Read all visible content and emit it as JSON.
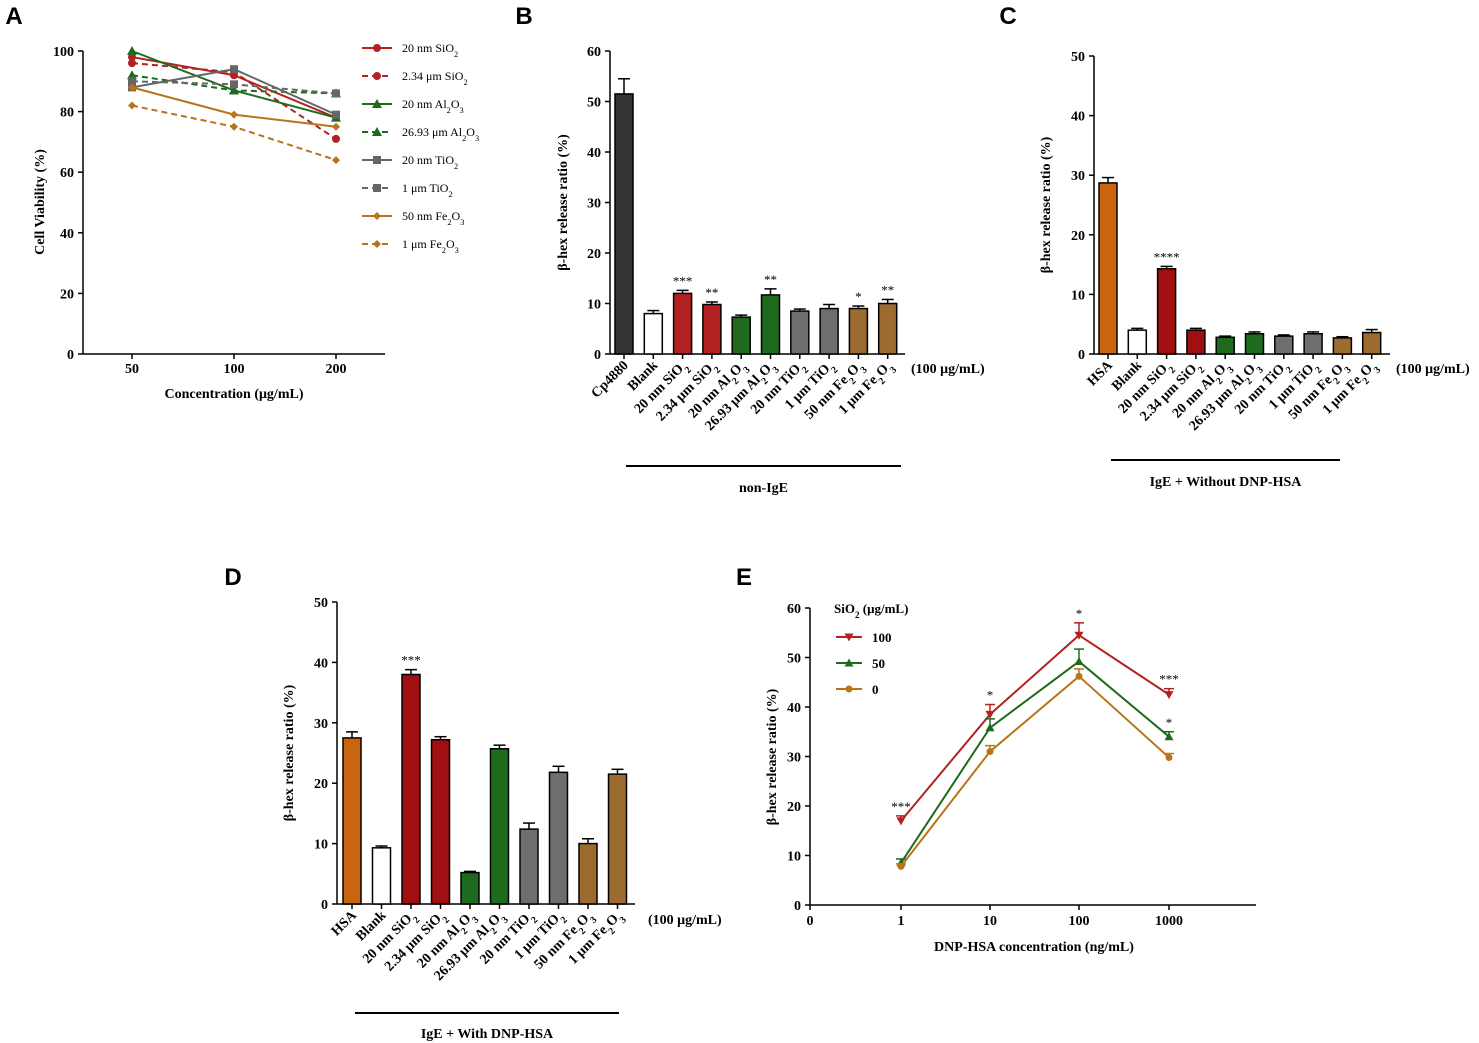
{
  "chart_data": [
    {
      "id": "A",
      "panel_label": "A",
      "type": "line",
      "xlabel": "Concentration (μg/mL)",
      "ylabel": "Cell Viability (%)",
      "categories": [
        "50",
        "100",
        "200"
      ],
      "ylim": [
        0,
        100
      ],
      "yticks": [
        "0",
        "20",
        "40",
        "60",
        "80",
        "100"
      ],
      "series": [
        {
          "name": "20 nm SiO2",
          "label_base": "20 nm SiO",
          "label_sub": "2",
          "color": "#B22222",
          "dash": false,
          "marker": "circle",
          "values": [
            98,
            92,
            78
          ]
        },
        {
          "name": "2.34 μm SiO2",
          "label_base": "2.34 μm SiO",
          "label_sub": "2",
          "color": "#B22222",
          "dash": true,
          "marker": "circle",
          "values": [
            96,
            93,
            71
          ]
        },
        {
          "name": "20 nm Al2O3",
          "label_base": "20 nm Al",
          "label_sub": "2",
          "label_mid": "O",
          "label_sub2": "3",
          "color": "#1E6B1E",
          "dash": false,
          "marker": "triangle",
          "values": [
            100,
            87,
            78
          ]
        },
        {
          "name": "26.93 μm Al2O3",
          "label_base": "26.93 μm Al",
          "label_sub": "2",
          "label_mid": "O",
          "label_sub2": "3",
          "color": "#1E6B1E",
          "dash": true,
          "marker": "triangle",
          "values": [
            92,
            87,
            86
          ]
        },
        {
          "name": "20 nm TiO2",
          "label_base": "20 nm TiO",
          "label_sub": "2",
          "color": "#666666",
          "dash": false,
          "marker": "square",
          "values": [
            88,
            94,
            79
          ]
        },
        {
          "name": "1 μm TiO2",
          "label_base": "1 μm TiO",
          "label_sub": "2",
          "color": "#666666",
          "dash": true,
          "marker": "square",
          "values": [
            90,
            89,
            86
          ]
        },
        {
          "name": "50 nm Fe2O3",
          "label_base": "50 nm Fe",
          "label_sub": "2",
          "label_mid": "O",
          "label_sub2": "3",
          "color": "#B8741A",
          "dash": false,
          "marker": "diamond",
          "values": [
            88,
            79,
            75
          ]
        },
        {
          "name": "1 μm Fe2O3",
          "label_base": "1 μm Fe",
          "label_sub": "2",
          "label_mid": "O",
          "label_sub2": "3",
          "color": "#B8741A",
          "dash": true,
          "marker": "diamond",
          "values": [
            82,
            75,
            64
          ]
        }
      ]
    },
    {
      "id": "B",
      "panel_label": "B",
      "type": "bar",
      "ylabel": "β-hex release ratio (%)",
      "ylim": [
        0,
        60
      ],
      "yticks": [
        "0",
        "10",
        "20",
        "30",
        "40",
        "50",
        "60"
      ],
      "unit_note": "(100 μg/mL)",
      "group_label": "non-IgE",
      "categories": [
        "Cp4880",
        "Blank",
        "20 nm SiO2",
        "2.34 μm SiO2",
        "20 nm Al2O3",
        "26.93 μm Al2O3",
        "20 nm TiO2",
        "1 μm TiO2",
        "50 nm Fe2O3",
        "1 μm Fe2O3"
      ],
      "values": [
        51.5,
        8,
        12,
        9.8,
        7.3,
        11.7,
        8.5,
        9,
        9,
        10
      ],
      "errors": [
        3,
        0.6,
        0.6,
        0.5,
        0.4,
        1.2,
        0.4,
        0.8,
        0.5,
        0.8
      ],
      "colors": [
        "#333333",
        "#FFFFFF",
        "#B22222",
        "#B22222",
        "#1E6B1E",
        "#1E6B1E",
        "#6E6E6E",
        "#6E6E6E",
        "#9C6B30",
        "#9C6B30"
      ],
      "significance": [
        "",
        "",
        "***",
        "**",
        "",
        "**",
        "",
        "",
        "*",
        "**"
      ]
    },
    {
      "id": "C",
      "panel_label": "C",
      "type": "bar",
      "ylabel": "β-hex release ratio (%)",
      "ylim": [
        0,
        50
      ],
      "yticks": [
        "0",
        "10",
        "20",
        "30",
        "40",
        "50"
      ],
      "unit_note": "(100 μg/mL)",
      "group_label": "IgE + Without DNP-HSA",
      "categories": [
        "HSA",
        "Blank",
        "20 nm SiO2",
        "2.34 μm SiO2",
        "20 nm Al2O3",
        "26.93 μm Al2O3",
        "20 nm TiO2",
        "1 μm TiO2",
        "50 nm Fe2O3",
        "1 μm Fe2O3"
      ],
      "values": [
        28.7,
        4,
        14.3,
        4,
        2.8,
        3.4,
        3,
        3.4,
        2.7,
        3.6
      ],
      "errors": [
        0.9,
        0.3,
        0.4,
        0.3,
        0.2,
        0.3,
        0.2,
        0.3,
        0.2,
        0.5
      ],
      "colors": [
        "#C8650E",
        "#FFFFFF",
        "#A01010",
        "#A01010",
        "#1E6B1E",
        "#1E6B1E",
        "#6E6E6E",
        "#6E6E6E",
        "#9C6B30",
        "#9C6B30"
      ],
      "significance": [
        "",
        "",
        "****",
        "",
        "",
        "",
        "",
        "",
        "",
        ""
      ]
    },
    {
      "id": "D",
      "panel_label": "D",
      "type": "bar",
      "ylabel": "β-hex release ratio (%)",
      "ylim": [
        0,
        50
      ],
      "yticks": [
        "0",
        "10",
        "20",
        "30",
        "40",
        "50"
      ],
      "unit_note": "(100 μg/mL)",
      "group_label": "IgE + With DNP-HSA",
      "categories": [
        "HSA",
        "Blank",
        "20 nm SiO2",
        "2.34 μm SiO2",
        "20 nm Al2O3",
        "26.93 μm Al2O3",
        "20 nm TiO2",
        "1 μm TiO2",
        "50 nm Fe2O3",
        "1 μm Fe2O3"
      ],
      "values": [
        27.5,
        9.3,
        38,
        27.2,
        5.2,
        25.7,
        12.4,
        21.8,
        10,
        21.5
      ],
      "errors": [
        1,
        0.3,
        0.8,
        0.5,
        0.2,
        0.6,
        1,
        1,
        0.8,
        0.8
      ],
      "colors": [
        "#C8650E",
        "#FFFFFF",
        "#A01010",
        "#A01010",
        "#1E6B1E",
        "#1E6B1E",
        "#6E6E6E",
        "#6E6E6E",
        "#9C6B30",
        "#9C6B30"
      ],
      "significance": [
        "",
        "",
        "***",
        "",
        "",
        "",
        "",
        "",
        "",
        ""
      ]
    },
    {
      "id": "E",
      "panel_label": "E",
      "type": "line",
      "xlabel": "DNP-HSA concentration (ng/mL)",
      "ylabel": "β-hex release ratio (%)",
      "xticks": [
        "0",
        "1",
        "10",
        "100",
        "1000"
      ],
      "ylim": [
        0,
        60
      ],
      "yticks": [
        "0",
        "10",
        "20",
        "30",
        "40",
        "50",
        "60"
      ],
      "legend_title_base": "SiO",
      "legend_title_sub": "2",
      "legend_title_rest": " (μg/mL)",
      "series": [
        {
          "name": "100",
          "color": "#B22222",
          "marker": "tri-down",
          "values": [
            17,
            38.5,
            54.5,
            42.5
          ],
          "errors": [
            1,
            2,
            2.5,
            1.2
          ],
          "significance": [
            "***",
            "*",
            "*",
            "***"
          ]
        },
        {
          "name": "50",
          "color": "#1E6B1E",
          "marker": "triangle",
          "values": [
            8.5,
            35.8,
            49.2,
            34
          ],
          "errors": [
            0.8,
            1.8,
            2.5,
            1
          ],
          "significance": [
            "",
            "",
            "",
            "*"
          ]
        },
        {
          "name": "0",
          "color": "#B8741A",
          "marker": "circle",
          "values": [
            7.8,
            31,
            46.2,
            29.8
          ],
          "errors": [
            0.5,
            1.2,
            1.5,
            0.8
          ],
          "significance": [
            "",
            "",
            "",
            ""
          ]
        }
      ]
    }
  ]
}
